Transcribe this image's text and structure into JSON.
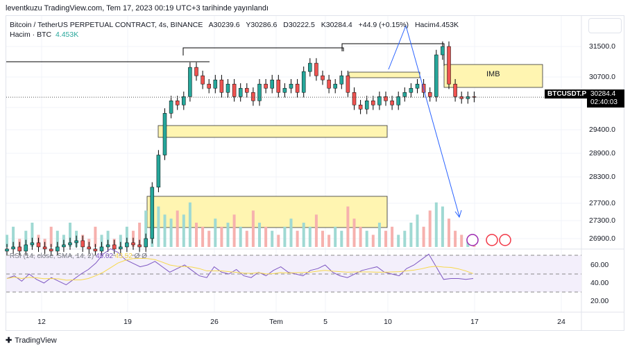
{
  "header": {
    "published": "leventkuzu TradingView.com, Tem 17, 2023 00:19 UTC+3 tarihinde yayınlandı",
    "symbol_title": "Bitcoin / TetherUS PERPETUAL CONTRACT, 4s, BINANCE",
    "open": "A30239.6",
    "high": "Y30286.6",
    "low": "D30222.5",
    "close": "K30284.4",
    "change": "+44.9 (+0.15%)",
    "volume_label": "Hacim4.453K",
    "vol_row_label": "Hacim · BTC",
    "vol_row_value": "4.453K"
  },
  "badge": {
    "symbol": "BTCUSDT.P",
    "price": "30284.4",
    "countdown": "02:40:03"
  },
  "annotations": {
    "imb": "IMB"
  },
  "rsi": {
    "label": "RSI (14, close, SMA, 14, 2)",
    "value": "45.02",
    "sma": "43.52",
    "extra1": "Ø",
    "extra2": "Ø",
    "ticks": [
      "60.00",
      "40.00",
      "20.00"
    ]
  },
  "footer": {
    "logo": "TradingView"
  },
  "colors": {
    "up": "#26a69a",
    "down": "#ef5350",
    "zone": "#fff5b1",
    "rsi": "#7e57c2",
    "rsi_sma": "#f7d84a",
    "arrow": "#2962ff"
  },
  "chart_data": {
    "type": "candlestick",
    "title": "Bitcoin / TetherUS PERPETUAL CONTRACT, 4s, BINANCE",
    "y_ticks": [
      "31500.0",
      "30700.0",
      "29400.0",
      "28900.0",
      "28300.0",
      "27700.0",
      "27300.0",
      "26900.0"
    ],
    "x_ticks": [
      "12",
      "19",
      "26",
      "Tem",
      "5",
      "10",
      "17",
      "24"
    ],
    "closes": [
      26650,
      26700,
      26600,
      26750,
      26800,
      26700,
      26650,
      26600,
      26700,
      26750,
      26800,
      26850,
      26700,
      26650,
      26600,
      26700,
      26750,
      26650,
      26700,
      26800,
      26750,
      26700,
      26900,
      28130,
      28900,
      29900,
      30200,
      30100,
      30300,
      31000,
      30800,
      30600,
      30500,
      30700,
      30400,
      30600,
      30300,
      30500,
      30400,
      30200,
      30600,
      30500,
      30700,
      30400,
      30500,
      30600,
      30400,
      30900,
      31100,
      30800,
      30700,
      30500,
      30600,
      30800,
      30400,
      30100,
      30000,
      30200,
      30100,
      30300,
      30200,
      30100,
      30300,
      30400,
      30500,
      30600,
      30400,
      30300,
      31300,
      31500,
      30600,
      30300,
      30250,
      30300,
      30284.4
    ],
    "volume": [
      3,
      5,
      2,
      4,
      6,
      3,
      2,
      5,
      4,
      3,
      6,
      4,
      3,
      2,
      5,
      3,
      4,
      2,
      3,
      5,
      4,
      6,
      9,
      12,
      10,
      8,
      7,
      9,
      8,
      11,
      6,
      5,
      4,
      7,
      5,
      6,
      8,
      5,
      4,
      9,
      6,
      5,
      4,
      3,
      5,
      7,
      4,
      6,
      5,
      8,
      4,
      3,
      5,
      4,
      10,
      7,
      5,
      4,
      3,
      6,
      4,
      5,
      3,
      4,
      6,
      8,
      5,
      9,
      11,
      10,
      7,
      4,
      3,
      2,
      2
    ],
    "rsi": [
      45,
      48,
      42,
      50,
      44,
      40,
      46,
      42,
      38,
      44,
      50,
      55,
      62,
      72,
      78,
      74,
      66,
      62,
      58,
      60,
      64,
      58,
      52,
      56,
      60,
      54,
      48,
      46,
      58,
      52,
      50,
      55,
      48,
      46,
      52,
      48,
      54,
      58,
      52,
      50,
      48,
      54,
      56,
      60,
      52,
      48,
      46,
      50,
      54,
      56,
      58,
      52,
      50,
      48,
      56,
      60,
      66,
      72,
      58,
      44,
      45,
      45,
      44,
      45
    ]
  }
}
